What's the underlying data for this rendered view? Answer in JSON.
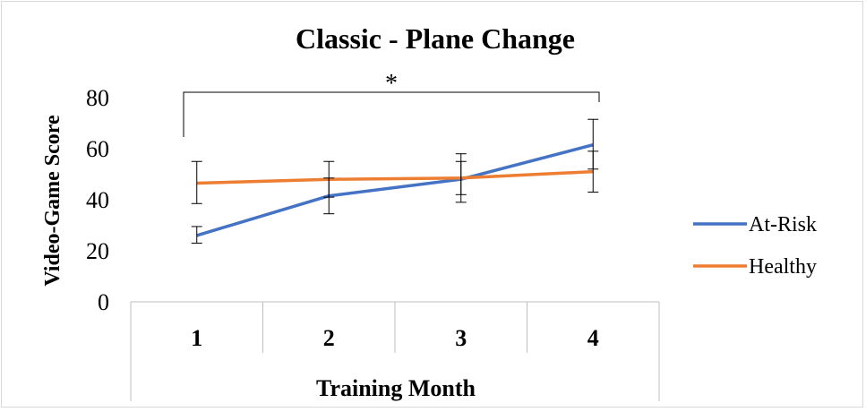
{
  "chart_data": {
    "type": "line",
    "title": "Classic - Plane Change",
    "xlabel": "Training Month",
    "ylabel": "Video-Game Score",
    "categories": [
      "1",
      "2",
      "3",
      "4"
    ],
    "ylim": [
      0,
      80
    ],
    "yticks": [
      0,
      20,
      40,
      60,
      80
    ],
    "grid": false,
    "legend": "right",
    "series": [
      {
        "name": "At-Risk",
        "color": "#4472c4",
        "values": [
          26,
          41.5,
          48,
          61.5
        ],
        "error_low": [
          23,
          34.5,
          39,
          52
        ],
        "error_high": [
          29.5,
          48.5,
          58,
          71.5
        ]
      },
      {
        "name": "Healthy",
        "color": "#ed7d31",
        "values": [
          46.5,
          48,
          48.5,
          51
        ],
        "error_low": [
          38.5,
          41,
          42,
          43
        ],
        "error_high": [
          55,
          55,
          55,
          59
        ]
      }
    ],
    "annotations": [
      {
        "text": "*",
        "from_category": "1",
        "to_category": "4",
        "y": 82
      }
    ]
  }
}
